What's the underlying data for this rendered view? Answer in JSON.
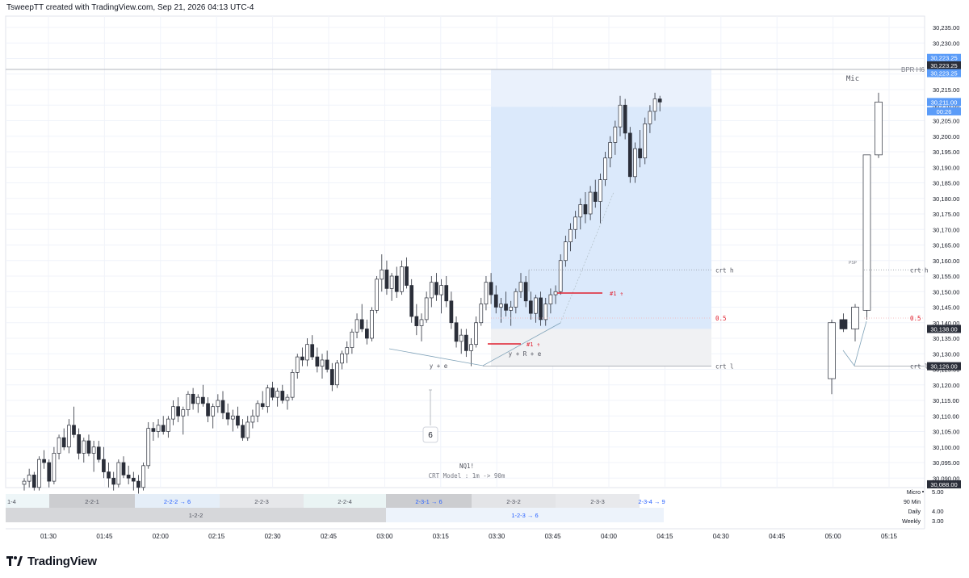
{
  "credit": "TsweepTT created with TradingView.com, Sep 21, 2026 04:13 UTC-4",
  "logo_text": "TradingView",
  "colors": {
    "grid": "#f0f3fa",
    "up_body": "#ffffff",
    "down_body": "#2a2e39",
    "wick": "#2a2e39",
    "zone_blue": "#dbe9fb",
    "zone_grey": "#f0f1f3",
    "red_line": "#e0202f",
    "level_line": "#9aa0aa",
    "bpr_line": "#b2b5be",
    "price_tag_dark": "#2a2e39",
    "price_tag_blue": "#2962ff",
    "link_blue": "#2962ff"
  },
  "chart_data": {
    "type": "candlestick",
    "symbol_label": "NQ1!",
    "model_label": "CRT Model : 1m -> 90m",
    "x_ticks": [
      "01:30",
      "01:45",
      "02:00",
      "02:15",
      "02:30",
      "02:45",
      "03:00",
      "03:15",
      "03:30",
      "03:45",
      "04:00",
      "04:15",
      "04:30",
      "04:45",
      "05:00",
      "05:15"
    ],
    "y_ticks": [
      "30,235.00",
      "30,230.00",
      "30,225.00",
      "30,220.00",
      "30,215.00",
      "30,210.00",
      "30,205.00",
      "30,200.00",
      "30,195.00",
      "30,190.00",
      "30,185.00",
      "30,180.00",
      "30,175.00",
      "30,170.00",
      "30,165.00",
      "30,160.00",
      "30,155.00",
      "30,150.00",
      "30,145.00",
      "30,140.00",
      "30,135.00",
      "30,130.00",
      "30,125.00",
      "30,120.00",
      "30,115.00",
      "30,110.00",
      "30,105.00",
      "30,100.00",
      "30,095.00",
      "30,090.00"
    ],
    "y_range": [
      30087,
      30237
    ],
    "price_tags": [
      {
        "label": "30,223.25",
        "style": "blue",
        "value": 30225.2
      },
      {
        "label": "30,223.25",
        "style": "dark",
        "value": 30222.8
      },
      {
        "label": "30,223.25",
        "style": "blue",
        "value": 30220.3
      },
      {
        "label": "30,211.00",
        "style": "blue",
        "value": 30211.0
      },
      {
        "label": "00:26",
        "style": "blue",
        "value": 30208.0
      },
      {
        "label": "30,138.00",
        "style": "dark",
        "value": 30138.0
      },
      {
        "label": "30,126.00",
        "style": "dark",
        "value": 30126.0
      },
      {
        "label": "30,088.00",
        "style": "dark",
        "value": 30088.0
      }
    ],
    "bpr": {
      "label": "BPR H6",
      "price": 30221.5
    },
    "crt_levels": [
      {
        "label": "crt h",
        "price": 30157.0
      },
      {
        "label": "0.5",
        "price": 30141.5
      },
      {
        "label": "crt l",
        "price": 30126.0
      }
    ],
    "annotations": {
      "ye": "y + e",
      "yre": "y + R + e",
      "marker_top": "#1 ⇮",
      "marker_bottom": "#1 ⇮",
      "count_box": "6",
      "htf_title": "Mic",
      "htf_small": "PSP",
      "htf_crt_h": "crt h",
      "htf_half": "0.5",
      "htf_crt_l": "crt l"
    },
    "candles": [
      [
        30088,
        30090,
        30086,
        30089
      ],
      [
        30089,
        30093,
        30087,
        30091
      ],
      [
        30091,
        30092,
        30086,
        30087
      ],
      [
        30087,
        30097,
        30086,
        30096
      ],
      [
        30096,
        30099,
        30093,
        30095
      ],
      [
        30095,
        30096,
        30087,
        30089
      ],
      [
        30089,
        30100,
        30088,
        30098
      ],
      [
        30098,
        30104,
        30096,
        30103
      ],
      [
        30103,
        30106,
        30099,
        30100
      ],
      [
        30100,
        30109,
        30098,
        30107
      ],
      [
        30107,
        30113,
        30103,
        30104
      ],
      [
        30104,
        30106,
        30096,
        30098
      ],
      [
        30098,
        30103,
        30095,
        30102
      ],
      [
        30102,
        30104,
        30097,
        30098
      ],
      [
        30098,
        30102,
        30092,
        30100
      ],
      [
        30100,
        30102,
        30095,
        30096
      ],
      [
        30096,
        30100,
        30090,
        30092
      ],
      [
        30092,
        30095,
        30087,
        30090
      ],
      [
        30090,
        30092,
        30086,
        30088
      ],
      [
        30088,
        30096,
        30087,
        30095
      ],
      [
        30095,
        30097,
        30090,
        30091
      ],
      [
        30091,
        30094,
        30088,
        30090
      ],
      [
        30090,
        30092,
        30086,
        30089
      ],
      [
        30089,
        30091,
        30085,
        30087
      ],
      [
        30087,
        30095,
        30086,
        30094
      ],
      [
        30094,
        30108,
        30093,
        30106
      ],
      [
        30106,
        30108,
        30102,
        30105
      ],
      [
        30105,
        30109,
        30103,
        30107
      ],
      [
        30107,
        30110,
        30104,
        30105
      ],
      [
        30105,
        30110,
        30103,
        30109
      ],
      [
        30109,
        30115,
        30107,
        30113
      ],
      [
        30113,
        30116,
        30108,
        30110
      ],
      [
        30110,
        30113,
        30104,
        30112
      ],
      [
        30112,
        30118,
        30110,
        30117
      ],
      [
        30117,
        30119,
        30112,
        30114
      ],
      [
        30114,
        30117,
        30111,
        30116
      ],
      [
        30116,
        30120,
        30113,
        30114
      ],
      [
        30114,
        30116,
        30108,
        30110
      ],
      [
        30110,
        30114,
        30106,
        30113
      ],
      [
        30113,
        30117,
        30111,
        30115
      ],
      [
        30115,
        30118,
        30109,
        30111
      ],
      [
        30111,
        30114,
        30107,
        30109
      ],
      [
        30109,
        30112,
        30105,
        30110
      ],
      [
        30110,
        30113,
        30106,
        30107
      ],
      [
        30107,
        30109,
        30102,
        30103
      ],
      [
        30103,
        30110,
        30102,
        30108
      ],
      [
        30108,
        30112,
        30106,
        30110
      ],
      [
        30110,
        30115,
        30108,
        30114
      ],
      [
        30114,
        30118,
        30112,
        30113
      ],
      [
        30113,
        30120,
        30111,
        30119
      ],
      [
        30119,
        30121,
        30115,
        30116
      ],
      [
        30116,
        30119,
        30113,
        30118
      ],
      [
        30118,
        30120,
        30114,
        30115
      ],
      [
        30115,
        30117,
        30112,
        30116
      ],
      [
        30116,
        30125,
        30115,
        30124
      ],
      [
        30124,
        30130,
        30122,
        30129
      ],
      [
        30129,
        30132,
        30126,
        30128
      ],
      [
        30128,
        30135,
        30126,
        30133
      ],
      [
        30133,
        30136,
        30128,
        30129
      ],
      [
        30129,
        30132,
        30124,
        30126
      ],
      [
        30126,
        30130,
        30122,
        30128
      ],
      [
        30128,
        30131,
        30124,
        30125
      ],
      [
        30125,
        30127,
        30118,
        30120
      ],
      [
        30120,
        30128,
        30119,
        30127
      ],
      [
        30127,
        30131,
        30125,
        30130
      ],
      [
        30130,
        30134,
        30127,
        30132
      ],
      [
        30132,
        30138,
        30130,
        30137
      ],
      [
        30137,
        30143,
        30135,
        30141
      ],
      [
        30141,
        30146,
        30137,
        30138
      ],
      [
        30138,
        30141,
        30133,
        30135
      ],
      [
        30135,
        30145,
        30134,
        30144
      ],
      [
        30144,
        30155,
        30143,
        30154
      ],
      [
        30154,
        30162,
        30150,
        30157
      ],
      [
        30157,
        30160,
        30149,
        30151
      ],
      [
        30151,
        30156,
        30147,
        30155
      ],
      [
        30155,
        30158,
        30148,
        30150
      ],
      [
        30150,
        30160,
        30149,
        30158
      ],
      [
        30158,
        30161,
        30151,
        30152
      ],
      [
        30152,
        30154,
        30140,
        30142
      ],
      [
        30142,
        30146,
        30136,
        30139
      ],
      [
        30139,
        30143,
        30134,
        30141
      ],
      [
        30141,
        30150,
        30140,
        30148
      ],
      [
        30148,
        30155,
        30145,
        30153
      ],
      [
        30153,
        30156,
        30147,
        30149
      ],
      [
        30149,
        30154,
        30143,
        30152
      ],
      [
        30152,
        30155,
        30145,
        30147
      ],
      [
        30147,
        30150,
        30138,
        30140
      ],
      [
        30140,
        30142,
        30132,
        30134
      ],
      [
        30134,
        30138,
        30130,
        30136
      ],
      [
        30136,
        30138,
        30129,
        30131
      ],
      [
        30131,
        30135,
        30126,
        30133
      ],
      [
        30133,
        30142,
        30132,
        30140
      ],
      [
        30140,
        30148,
        30139,
        30146
      ],
      [
        30146,
        30155,
        30144,
        30153
      ],
      [
        30153,
        30156,
        30146,
        30149
      ],
      [
        30149,
        30152,
        30143,
        30145
      ],
      [
        30145,
        30148,
        30140,
        30146
      ],
      [
        30146,
        30150,
        30142,
        30144
      ],
      [
        30144,
        30147,
        30139,
        30145
      ],
      [
        30145,
        30151,
        30143,
        30150
      ],
      [
        30150,
        30156,
        30148,
        30153
      ],
      [
        30153,
        30155,
        30145,
        30147
      ],
      [
        30147,
        30150,
        30141,
        30143
      ],
      [
        30143,
        30149,
        30140,
        30148
      ],
      [
        30148,
        30150,
        30139,
        30141
      ],
      [
        30141,
        30148,
        30139,
        30146
      ],
      [
        30146,
        30151,
        30143,
        30149
      ],
      [
        30149,
        30152,
        30146,
        30150
      ],
      [
        30150,
        30162,
        30149,
        30160
      ],
      [
        30160,
        30168,
        30158,
        30166
      ],
      [
        30166,
        30172,
        30163,
        30170
      ],
      [
        30170,
        30176,
        30167,
        30174
      ],
      [
        30174,
        30180,
        30170,
        30178
      ],
      [
        30178,
        30182,
        30172,
        30175
      ],
      [
        30175,
        30184,
        30173,
        30182
      ],
      [
        30182,
        30186,
        30177,
        30179
      ],
      [
        30179,
        30188,
        30172,
        30186
      ],
      [
        30186,
        30195,
        30184,
        30193
      ],
      [
        30193,
        30200,
        30190,
        30198
      ],
      [
        30198,
        30205,
        30194,
        30203
      ],
      [
        30203,
        30213,
        30200,
        30210
      ],
      [
        30210,
        30212,
        30199,
        30201
      ],
      [
        30201,
        30203,
        30185,
        30187
      ],
      [
        30187,
        30198,
        30185,
        30196
      ],
      [
        30196,
        30202,
        30190,
        30193
      ],
      [
        30193,
        30206,
        30191,
        30204
      ],
      [
        30204,
        30210,
        30201,
        30208
      ],
      [
        30208,
        30214,
        30205,
        30212
      ],
      [
        30212,
        30213,
        30208,
        30211
      ]
    ],
    "htf_candles": [
      [
        30122,
        30141,
        30117,
        30140
      ],
      [
        30141,
        30143,
        30137,
        30138
      ],
      [
        30138,
        30146,
        30134,
        30145
      ],
      [
        30144,
        30193,
        30141,
        30194
      ],
      [
        30194,
        30214,
        30193,
        30211
      ]
    ],
    "tables": {
      "row1": [
        {
          "label": "1-4"
        },
        {
          "label": "2-2-1"
        },
        {
          "label": "2-2-2 → 6",
          "link": true
        },
        {
          "label": "2-2-3"
        },
        {
          "label": "2-2-4"
        },
        {
          "label": "2-3-1 → 6",
          "link": true
        },
        {
          "label": "2-3-2"
        },
        {
          "label": "2-3-3"
        },
        {
          "label": "2-3-4 → 9",
          "link": true
        }
      ],
      "row2": [
        {
          "label": "1-2-2"
        },
        {
          "label": "1-2-3 → 6",
          "link": true
        }
      ],
      "legend": [
        {
          "label": "Micro",
          "value": "5.00"
        },
        {
          "label": "90 Min",
          "value": ""
        },
        {
          "label": "Daily",
          "value": "4.00"
        },
        {
          "label": "Weekly",
          "value": "3.00"
        }
      ]
    }
  }
}
